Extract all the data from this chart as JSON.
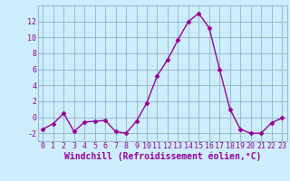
{
  "x": [
    0,
    1,
    2,
    3,
    4,
    5,
    6,
    7,
    8,
    9,
    10,
    11,
    12,
    13,
    14,
    15,
    16,
    17,
    18,
    19,
    20,
    21,
    22,
    23
  ],
  "y": [
    -1.5,
    -0.8,
    0.5,
    -1.8,
    -0.6,
    -0.5,
    -0.4,
    -1.8,
    -2.0,
    -0.5,
    1.8,
    5.2,
    7.2,
    9.7,
    12.0,
    13.0,
    11.2,
    6.0,
    1.0,
    -1.5,
    -2.0,
    -2.0,
    -0.7,
    -0.1
  ],
  "line_color": "#990099",
  "marker": "D",
  "marker_size": 2.5,
  "line_width": 1.0,
  "bg_color": "#cceeff",
  "grid_color": "#99bbcc",
  "xlabel": "Windchill (Refroidissement éolien,°C)",
  "xlabel_fontsize": 7,
  "tick_fontsize": 6,
  "ylim": [
    -3,
    14
  ],
  "xlim": [
    -0.5,
    23.5
  ],
  "yticks": [
    -2,
    0,
    2,
    4,
    6,
    8,
    10,
    12
  ],
  "xticks": [
    0,
    1,
    2,
    3,
    4,
    5,
    6,
    7,
    8,
    9,
    10,
    11,
    12,
    13,
    14,
    15,
    16,
    17,
    18,
    19,
    20,
    21,
    22,
    23
  ]
}
